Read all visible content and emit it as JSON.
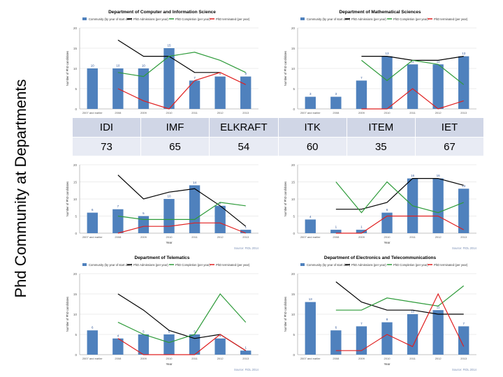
{
  "slide_title": "Phd Community at Departments",
  "stats_table": {
    "headers": [
      "IDI",
      "IMF",
      "ELKRAFT",
      "ITK",
      "ITEM",
      "IET"
    ],
    "values": [
      "73",
      "65",
      "54",
      "60",
      "35",
      "67"
    ]
  },
  "colors": {
    "bar": "#4f81bd",
    "admissions": "#000000",
    "completion": "#2e9b3a",
    "terminated": "#e02020",
    "grid": "#d9d9d9",
    "axis_text": "#555555"
  },
  "chart_data": [
    {
      "type": "bar",
      "title": "Department of Computer and Information Science",
      "legend": [
        "Community (by year of start date)",
        "PhD Admissions (per year)",
        "PhD Completion (per year)",
        "PhD terminated (per year)"
      ],
      "ylabel": "Number of PhD candidates",
      "xlabel": "",
      "source": "",
      "categories": [
        "2007 and earlier",
        "2008",
        "2009",
        "2010",
        "2011",
        "2012",
        "2013"
      ],
      "yticks": [
        "0",
        "5",
        "10",
        "15",
        "20"
      ],
      "ylim": [
        0,
        20
      ],
      "bars": [
        10,
        10,
        10,
        15,
        7,
        8,
        8
      ],
      "bar_labels": [
        "10",
        "10",
        "10",
        "15",
        "7",
        "8",
        "8"
      ],
      "series": [
        {
          "name": "PhD Admissions (per year)",
          "values": [
            null,
            17,
            13,
            13,
            9,
            9,
            null
          ]
        },
        {
          "name": "PhD Completion (per year)",
          "values": [
            null,
            9,
            8,
            13,
            14,
            12,
            9
          ]
        },
        {
          "name": "PhD terminated (per year)",
          "values": [
            null,
            5,
            2,
            0,
            7,
            9,
            6
          ]
        }
      ]
    },
    {
      "type": "bar",
      "title": "Department of Mathematical Sciences",
      "legend": [
        "Community (by year of start date)",
        "PhD Admissions (per year)",
        "PhD Completion (per year)",
        "PhD terminated (per year)"
      ],
      "ylabel": "Number of PhD candidates",
      "xlabel": "",
      "source": "",
      "categories": [
        "2007 and earlier",
        "2008",
        "2009",
        "2010",
        "2011",
        "2012",
        "2013"
      ],
      "yticks": [
        "0",
        "5",
        "10",
        "15",
        "20"
      ],
      "ylim": [
        0,
        20
      ],
      "bars": [
        3,
        3,
        7,
        13,
        11,
        11,
        13
      ],
      "bar_labels": [
        "3",
        "3",
        "7",
        "13",
        "11",
        "11",
        "13"
      ],
      "series": [
        {
          "name": "PhD Admissions (per year)",
          "values": [
            null,
            null,
            13,
            13,
            12,
            12,
            13
          ]
        },
        {
          "name": "PhD Completion (per year)",
          "values": [
            null,
            null,
            12,
            7,
            12,
            11,
            6
          ]
        },
        {
          "name": "PhD terminated (per year)",
          "values": [
            null,
            null,
            0,
            0,
            5,
            0,
            2
          ]
        }
      ]
    },
    {
      "type": "bar",
      "title": "",
      "legend": [],
      "ylabel": "Number of PhD candidates",
      "xlabel": "Year",
      "source": "Source: FIDL 2014",
      "categories": [
        "2007 and earlier",
        "2008",
        "2009",
        "2010",
        "2011",
        "2012",
        "2013"
      ],
      "yticks": [
        "0",
        "5",
        "10",
        "15",
        "20"
      ],
      "ylim": [
        0,
        20
      ],
      "bars": [
        6,
        7,
        5,
        10,
        14,
        8,
        1
      ],
      "bar_labels": [
        "6",
        "7",
        "5",
        "10",
        "14",
        "8",
        "1"
      ],
      "series": [
        {
          "name": "PhD Admissions (per year)",
          "values": [
            null,
            17,
            10,
            12,
            13,
            8,
            2
          ]
        },
        {
          "name": "PhD Completion (per year)",
          "values": [
            null,
            5,
            4,
            4,
            4,
            9,
            8
          ]
        },
        {
          "name": "PhD terminated (per year)",
          "values": [
            null,
            0,
            2,
            2,
            3,
            3,
            0
          ]
        }
      ]
    },
    {
      "type": "bar",
      "title": "",
      "legend": [],
      "ylabel": "Number of PhD candidates",
      "xlabel": "Year",
      "source": "Source: FIDL 2014",
      "categories": [
        "2007 and earlier",
        "2008",
        "2009",
        "2010",
        "2011",
        "2012",
        "2013"
      ],
      "yticks": [
        "0",
        "5",
        "10",
        "15",
        "20"
      ],
      "ylim": [
        0,
        20
      ],
      "bars": [
        4,
        1,
        1,
        6,
        16,
        16,
        13
      ],
      "bar_labels": [
        "4",
        "1",
        "1",
        "6",
        "16",
        "16",
        "13"
      ],
      "series": [
        {
          "name": "PhD Admissions (per year)",
          "values": [
            null,
            7,
            7,
            9,
            16,
            16,
            14
          ]
        },
        {
          "name": "PhD Completion (per year)",
          "values": [
            null,
            15,
            6,
            15,
            8,
            6,
            9
          ]
        },
        {
          "name": "PhD terminated (per year)",
          "values": [
            null,
            0,
            0,
            5,
            5,
            5,
            1
          ]
        }
      ]
    },
    {
      "type": "bar",
      "title": "Department of Telematics",
      "legend": [
        "Community (by year of start date)",
        "PhD Admissions (per year)",
        "PhD Completion (per year)",
        "PhD terminated (per year)"
      ],
      "ylabel": "Number of PhD candidates",
      "xlabel": "Year",
      "source": "Source: FIDL 2014",
      "categories": [
        "2007 and earlier",
        "2008",
        "2009",
        "2010",
        "2011",
        "2012",
        "2013"
      ],
      "yticks": [
        "0",
        "5",
        "10",
        "15",
        "20"
      ],
      "ylim": [
        0,
        20
      ],
      "bars": [
        6,
        4,
        5,
        5,
        5,
        4,
        1
      ],
      "bar_labels": [
        "6",
        "4",
        "5",
        "5",
        "5",
        "4",
        "1"
      ],
      "series": [
        {
          "name": "PhD Admissions (per year)",
          "values": [
            null,
            15,
            11,
            6,
            4,
            5,
            1
          ]
        },
        {
          "name": "PhD Completion (per year)",
          "values": [
            null,
            8,
            5,
            3,
            5,
            15,
            8
          ]
        },
        {
          "name": "PhD terminated (per year)",
          "values": [
            null,
            4,
            0,
            0,
            0,
            5,
            1
          ]
        }
      ]
    },
    {
      "type": "bar",
      "title": "Department of Electronics and Telecommunications",
      "legend": [
        "Community (by year of start date)",
        "PhD Admissions (per year)",
        "PhD Completion (per year)",
        "PhD terminated (per year)"
      ],
      "ylabel": "Number of PhD candidates",
      "xlabel": "Year",
      "source": "Source: FIDL 2014",
      "categories": [
        "2007 and earlier",
        "2008",
        "2009",
        "2010",
        "2011",
        "2012",
        "2013"
      ],
      "yticks": [
        "0",
        "5",
        "10",
        "15",
        "20"
      ],
      "ylim": [
        0,
        20
      ],
      "bars": [
        13,
        6,
        7,
        8,
        10,
        11,
        7
      ],
      "bar_labels": [
        "13",
        "6",
        "7",
        "8",
        "10",
        "11",
        "7"
      ],
      "series": [
        {
          "name": "PhD Admissions (per year)",
          "values": [
            null,
            18,
            13,
            11,
            11,
            10,
            10
          ]
        },
        {
          "name": "PhD Completion (per year)",
          "values": [
            null,
            11,
            11,
            14,
            13,
            12,
            17
          ]
        },
        {
          "name": "PhD terminated (per year)",
          "values": [
            null,
            1,
            1,
            5,
            2,
            15,
            2
          ]
        }
      ]
    }
  ]
}
